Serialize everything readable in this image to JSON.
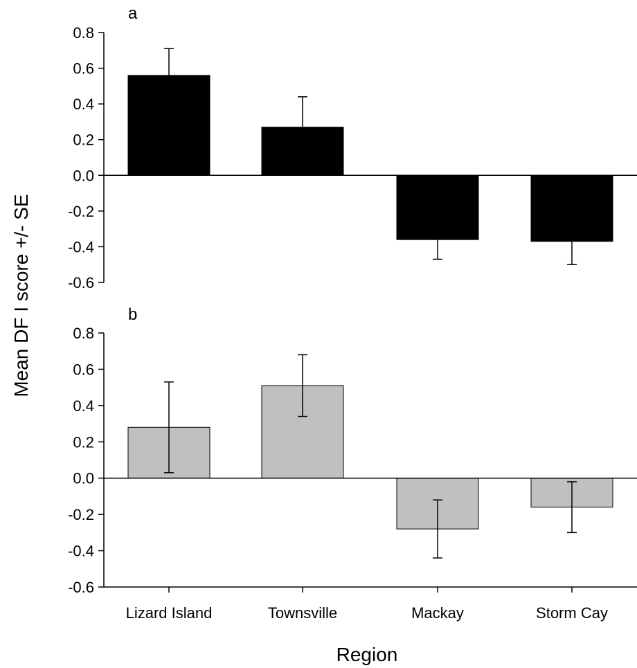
{
  "chart_data": {
    "type": "bar",
    "xlabel": "Region",
    "ylabel": "Mean DF I score +/- SE",
    "categories": [
      "Lizard Island",
      "Townsville",
      "Mackay",
      "Storm Cay"
    ],
    "ylim": [
      -0.6,
      0.8
    ],
    "yticks": [
      "0.8",
      "0.6",
      "0.4",
      "0.2",
      "0.0",
      "-0.2",
      "-0.4",
      "-0.6"
    ],
    "panels": [
      {
        "label": "a",
        "bar_color": "#000000",
        "values": [
          0.56,
          0.27,
          -0.36,
          -0.37
        ],
        "se": [
          0.15,
          0.17,
          0.11,
          0.13
        ],
        "error_bars": "outward"
      },
      {
        "label": "b",
        "bar_color": "#c0c0c0",
        "values": [
          0.28,
          0.51,
          -0.28,
          -0.16
        ],
        "se": [
          0.25,
          0.17,
          0.16,
          0.14
        ],
        "error_bars": "both"
      }
    ]
  }
}
